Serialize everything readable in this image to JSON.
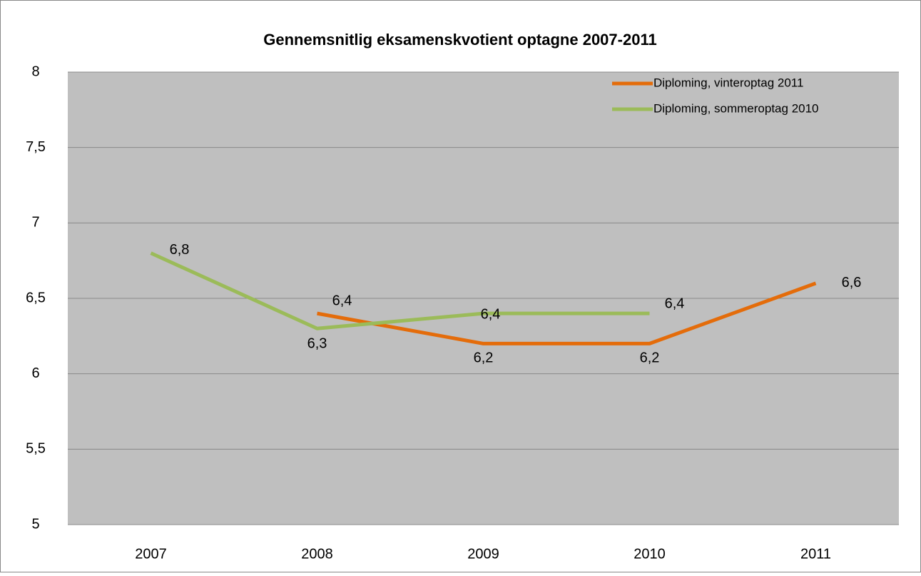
{
  "chart_data": {
    "type": "line",
    "title": "Gennemsnitlig eksamenskvotient optagne 2007-2011",
    "categories": [
      "2007",
      "2008",
      "2009",
      "2010",
      "2011"
    ],
    "series": [
      {
        "name": "Diploming, vinteroptag 2011",
        "color": "#e46c0a",
        "values": [
          null,
          6.4,
          6.2,
          6.2,
          6.6
        ],
        "value_labels": [
          null,
          "6,4",
          "6,2",
          "6,2",
          "6,6"
        ]
      },
      {
        "name": "Diploming, sommeroptag 2010",
        "color": "#9bbb59",
        "values": [
          6.8,
          6.3,
          6.4,
          6.4,
          null
        ],
        "value_labels": [
          "6,8",
          "6,3",
          "6,4",
          "6,4",
          null
        ]
      }
    ],
    "ylim": [
      5,
      8
    ],
    "yticks": [
      5,
      {
        "value": 5.5,
        "label": "5,5"
      },
      6,
      {
        "value": 6.5,
        "label": "6,5"
      },
      7,
      {
        "value": 7.5,
        "label": "7,5"
      },
      8
    ],
    "grid": true,
    "legend": "top-right"
  }
}
